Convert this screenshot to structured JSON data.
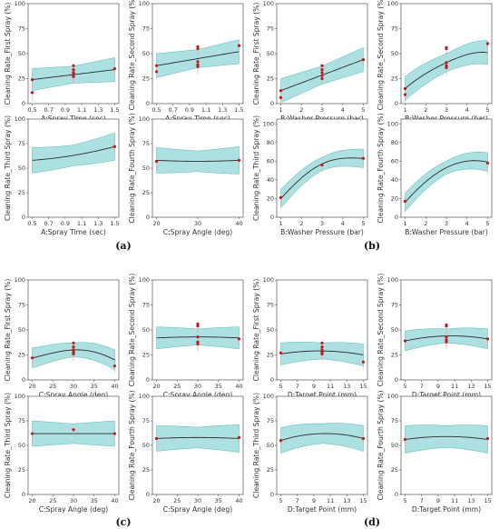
{
  "panel_labels": {
    "a": "(a)",
    "b": "(b)",
    "c": "(c)",
    "d": "(d)"
  },
  "colors": {
    "band": "#9fdcdc",
    "band_edge": "#4fb6b6",
    "curve": "#2b2b2b",
    "point": "#c0191a",
    "ci_line": "#e8a5a5"
  },
  "chart_data": [
    {
      "type": "line",
      "x_ticks": [
        "0.5",
        "0.7",
        "0.9",
        "1.1",
        "1.3",
        "1.5"
      ],
      "x_vals": [
        0.5,
        0.7,
        0.9,
        1.1,
        1.3,
        1.5
      ],
      "xlim": [
        0.45,
        1.55
      ],
      "y_ticks": [
        "0",
        "25",
        "50",
        "75",
        "100"
      ],
      "ylim": [
        0,
        100
      ],
      "xlabel": "A:Spray Time (sec)",
      "ylabel": "Cleaning Rate_First Spray (%)",
      "fit_x": [
        0.5,
        1.5
      ],
      "fit_y": [
        24,
        34
      ],
      "band": [
        8,
        9
      ],
      "points": [
        [
          0.5,
          24
        ],
        [
          0.5,
          11
        ],
        [
          1.0,
          38
        ],
        [
          1.0,
          34
        ],
        [
          1.0,
          31
        ],
        [
          1.0,
          29
        ],
        [
          1.0,
          27
        ],
        [
          1.5,
          35
        ]
      ]
    },
    {
      "type": "line",
      "x_ticks": [
        "0.5",
        "0.7",
        "0.9",
        "1.1",
        "1.3",
        "1.5"
      ],
      "x_vals": [
        0.5,
        0.7,
        0.9,
        1.1,
        1.3,
        1.5
      ],
      "xlim": [
        0.45,
        1.55
      ],
      "y_ticks": [
        "0",
        "25",
        "50",
        "75",
        "100"
      ],
      "ylim": [
        0,
        100
      ],
      "xlabel": "A:Spray Time (sec)",
      "ylabel": "Cleaning Rate_Second Spray (%)",
      "fit_x": [
        0.5,
        1.5
      ],
      "fit_y": [
        38,
        52
      ],
      "band": [
        9,
        9
      ],
      "points": [
        [
          0.5,
          38
        ],
        [
          0.5,
          32
        ],
        [
          1.0,
          57
        ],
        [
          1.0,
          55
        ],
        [
          1.0,
          42
        ],
        [
          1.0,
          39
        ],
        [
          1.0,
          37
        ],
        [
          1.5,
          58
        ]
      ]
    },
    {
      "type": "line",
      "x_ticks": [
        "1",
        "2",
        "3",
        "4",
        "5"
      ],
      "x_vals": [
        1,
        2,
        3,
        4,
        5
      ],
      "xlim": [
        0.8,
        5.2
      ],
      "y_ticks": [
        "0",
        "25",
        "50",
        "75",
        "100"
      ],
      "ylim": [
        0,
        100
      ],
      "xlabel": "B:Washer Pressure (bar)",
      "ylabel": "Cleaning Rate_First Spray (%)",
      "fit_x": [
        1,
        5
      ],
      "fit_y": [
        13,
        44
      ],
      "band": [
        9,
        9
      ],
      "points": [
        [
          1,
          13
        ],
        [
          1,
          6
        ],
        [
          3,
          38
        ],
        [
          3,
          34
        ],
        [
          3,
          31
        ],
        [
          3,
          28
        ],
        [
          3,
          25
        ],
        [
          5,
          44
        ]
      ]
    },
    {
      "type": "line",
      "x_ticks": [
        "1",
        "2",
        "3",
        "4",
        "5"
      ],
      "x_vals": [
        1,
        2,
        3,
        4,
        5
      ],
      "xlim": [
        0.8,
        5.2
      ],
      "y_ticks": [
        "0",
        "25",
        "50",
        "75",
        "100"
      ],
      "ylim": [
        0,
        100
      ],
      "xlabel": "B:Washer Pressure (bar)",
      "ylabel": "Cleaning Rate_Second Spray (%)",
      "fit_x": [
        1,
        2,
        3,
        4,
        5
      ],
      "fit_y": [
        15,
        30,
        41,
        49,
        51
      ],
      "band": [
        9,
        9
      ],
      "points": [
        [
          1,
          15
        ],
        [
          1,
          9
        ],
        [
          3,
          56
        ],
        [
          3,
          55
        ],
        [
          3,
          41
        ],
        [
          3,
          38
        ],
        [
          3,
          36
        ],
        [
          5,
          60
        ]
      ]
    },
    {
      "type": "line",
      "x_ticks": [
        "0.5",
        "0.7",
        "0.9",
        "1.1",
        "1.3",
        "1.5"
      ],
      "x_vals": [
        0.5,
        0.7,
        0.9,
        1.1,
        1.3,
        1.5
      ],
      "xlim": [
        0.45,
        1.55
      ],
      "y_ticks": [
        "0",
        "25",
        "50",
        "75",
        "100"
      ],
      "ylim": [
        0,
        100
      ],
      "xlabel": "A:Spray Time (sec)",
      "ylabel": "Cleaning Rate_Third Spray (%)",
      "fit_x": [
        0.5,
        1.0,
        1.5
      ],
      "fit_y": [
        58,
        63,
        72
      ],
      "band": [
        10,
        11
      ],
      "points": [
        [
          1.5,
          72
        ]
      ]
    },
    {
      "type": "line",
      "x_ticks": [
        "20",
        "30",
        "40"
      ],
      "x_vals": [
        20,
        30,
        40
      ],
      "xlim": [
        19,
        41
      ],
      "y_ticks": [
        "0",
        "25",
        "50",
        "75",
        "100"
      ],
      "ylim": [
        0,
        100
      ],
      "xlabel": "C:Spray Angle (deg)",
      "ylabel": "Cleaning Rate_Fourth Spray (%)",
      "fit_x": [
        20,
        30,
        40
      ],
      "fit_y": [
        58,
        57,
        58
      ],
      "band": [
        10,
        11
      ],
      "points": [
        [
          20,
          57
        ],
        [
          40,
          58
        ]
      ]
    },
    {
      "type": "line",
      "x_ticks": [
        "1",
        "2",
        "3",
        "4",
        "5"
      ],
      "x_vals": [
        1,
        2,
        3,
        4,
        5
      ],
      "xlim": [
        0.8,
        5.2
      ],
      "y_ticks": [
        "0",
        "20",
        "40",
        "60",
        "80",
        "100"
      ],
      "ylim": [
        0,
        105
      ],
      "xlabel": "B:Washer Pressure (bar)",
      "ylabel": "Cleaning Rate_Third Spray (%)",
      "fit_x": [
        1,
        2,
        3,
        4,
        5
      ],
      "fit_y": [
        20,
        42,
        57,
        63,
        63
      ],
      "band": [
        7,
        7
      ],
      "points": [
        [
          1,
          21
        ],
        [
          3,
          56
        ],
        [
          5,
          63
        ]
      ]
    },
    {
      "type": "line",
      "x_ticks": [
        "1",
        "2",
        "3",
        "4",
        "5"
      ],
      "x_vals": [
        1,
        2,
        3,
        4,
        5
      ],
      "xlim": [
        0.8,
        5.2
      ],
      "y_ticks": [
        "0",
        "20",
        "40",
        "60",
        "80",
        "100"
      ],
      "ylim": [
        0,
        105
      ],
      "xlabel": "B:Washer Pressure (bar)",
      "ylabel": "Cleaning Rate_Fourth Spray (%)",
      "fit_x": [
        1,
        2,
        3,
        4,
        5
      ],
      "fit_y": [
        16,
        38,
        53,
        60,
        59
      ],
      "band": [
        7,
        7
      ],
      "points": [
        [
          1,
          17
        ],
        [
          5,
          58
        ]
      ]
    },
    {
      "type": "line",
      "x_ticks": [
        "20",
        "25",
        "30",
        "35",
        "40"
      ],
      "x_vals": [
        20,
        25,
        30,
        35,
        40
      ],
      "xlim": [
        19,
        41
      ],
      "y_ticks": [
        "0",
        "25",
        "50",
        "75",
        "100"
      ],
      "ylim": [
        0,
        100
      ],
      "xlabel": "C:Spray Angle (deg)",
      "ylabel": "Cleaning Rate_First Spray (%)",
      "fit_x": [
        20,
        25,
        30,
        35,
        40
      ],
      "fit_y": [
        22,
        27,
        30,
        28,
        20
      ],
      "band": [
        7,
        7
      ],
      "points": [
        [
          20,
          22
        ],
        [
          30,
          37
        ],
        [
          30,
          33
        ],
        [
          30,
          30
        ],
        [
          30,
          28
        ],
        [
          30,
          26
        ],
        [
          40,
          14
        ]
      ]
    },
    {
      "type": "line",
      "x_ticks": [
        "20",
        "25",
        "30",
        "35",
        "40"
      ],
      "x_vals": [
        20,
        25,
        30,
        35,
        40
      ],
      "xlim": [
        19,
        41
      ],
      "y_ticks": [
        "0",
        "25",
        "50",
        "75",
        "100"
      ],
      "ylim": [
        0,
        100
      ],
      "xlabel": "C:Spray Angle (deg)",
      "ylabel": "Cleaning Rate_Second Spray (%)",
      "fit_x": [
        20,
        30,
        40
      ],
      "fit_y": [
        42,
        43,
        42
      ],
      "band": [
        8,
        8
      ],
      "points": [
        [
          30,
          56
        ],
        [
          30,
          54
        ],
        [
          30,
          43
        ],
        [
          30,
          38
        ],
        [
          30,
          36
        ],
        [
          40,
          41
        ]
      ]
    },
    {
      "type": "line",
      "x_ticks": [
        "5",
        "7",
        "9",
        "11",
        "13",
        "15"
      ],
      "x_vals": [
        5,
        7,
        9,
        11,
        13,
        15
      ],
      "xlim": [
        4.5,
        15.5
      ],
      "y_ticks": [
        "0",
        "25",
        "50",
        "75",
        "100"
      ],
      "ylim": [
        0,
        100
      ],
      "xlabel": "D:Target Point (mm)",
      "ylabel": "Cleaning Rate_First Spray (%)",
      "fit_x": [
        5,
        10,
        15
      ],
      "fit_y": [
        26,
        29,
        25
      ],
      "band": [
        8,
        8
      ],
      "points": [
        [
          5,
          27
        ],
        [
          10,
          37
        ],
        [
          10,
          33
        ],
        [
          10,
          30
        ],
        [
          10,
          28
        ],
        [
          10,
          26
        ],
        [
          15,
          18
        ]
      ]
    },
    {
      "type": "line",
      "x_ticks": [
        "5",
        "7",
        "9",
        "11",
        "13",
        "15"
      ],
      "x_vals": [
        5,
        7,
        9,
        11,
        13,
        15
      ],
      "xlim": [
        4.5,
        15.5
      ],
      "y_ticks": [
        "0",
        "25",
        "50",
        "75",
        "100"
      ],
      "ylim": [
        0,
        100
      ],
      "xlabel": "D:Target Point (mm)",
      "ylabel": "Cleaning Rate_Second Spray (%)",
      "fit_x": [
        5,
        10,
        15
      ],
      "fit_y": [
        39,
        44,
        41
      ],
      "band": [
        7,
        7
      ],
      "points": [
        [
          5,
          39
        ],
        [
          10,
          55
        ],
        [
          10,
          54
        ],
        [
          10,
          43
        ],
        [
          10,
          40
        ],
        [
          10,
          38
        ],
        [
          15,
          41
        ]
      ]
    },
    {
      "type": "line",
      "x_ticks": [
        "20",
        "25",
        "30",
        "35",
        "40"
      ],
      "x_vals": [
        20,
        25,
        30,
        35,
        40
      ],
      "xlim": [
        19,
        41
      ],
      "y_ticks": [
        "0",
        "25",
        "50",
        "75",
        "100"
      ],
      "ylim": [
        0,
        100
      ],
      "xlabel": "C:Spray Angle (deg)",
      "ylabel": "Cleaning Rate_Third Spray (%)",
      "fit_x": [
        20,
        30,
        40
      ],
      "fit_y": [
        62,
        62,
        62
      ],
      "band": [
        10,
        10
      ],
      "points": [
        [
          20,
          62
        ],
        [
          30,
          66
        ],
        [
          40,
          62
        ]
      ]
    },
    {
      "type": "line",
      "x_ticks": [
        "20",
        "25",
        "30",
        "35",
        "40"
      ],
      "x_vals": [
        20,
        25,
        30,
        35,
        40
      ],
      "xlim": [
        19,
        41
      ],
      "y_ticks": [
        "0",
        "25",
        "50",
        "75",
        "100"
      ],
      "ylim": [
        0,
        100
      ],
      "xlabel": "C:Spray Angle (deg)",
      "ylabel": "Cleaning Rate_Fourth Spray (%)",
      "fit_x": [
        20,
        30,
        40
      ],
      "fit_y": [
        57,
        58,
        57
      ],
      "band": [
        10,
        11
      ],
      "points": [
        [
          20,
          57
        ],
        [
          40,
          58
        ]
      ]
    },
    {
      "type": "line",
      "x_ticks": [
        "5",
        "7",
        "9",
        "11",
        "13",
        "15"
      ],
      "x_vals": [
        5,
        7,
        9,
        11,
        13,
        15
      ],
      "xlim": [
        4.5,
        15.5
      ],
      "y_ticks": [
        "0",
        "25",
        "50",
        "75",
        "100"
      ],
      "ylim": [
        0,
        100
      ],
      "xlabel": "D:Target Point (mm)",
      "ylabel": "Cleaning Rate_Third Spray (%)",
      "fit_x": [
        5,
        10,
        15
      ],
      "fit_y": [
        55,
        62,
        57
      ],
      "band": [
        10,
        10
      ],
      "points": [
        [
          5,
          55
        ],
        [
          15,
          57
        ]
      ]
    },
    {
      "type": "line",
      "x_ticks": [
        "5",
        "7",
        "9",
        "11",
        "13",
        "15"
      ],
      "x_vals": [
        5,
        7,
        9,
        11,
        13,
        15
      ],
      "xlim": [
        4.5,
        15.5
      ],
      "y_ticks": [
        "0",
        "25",
        "50",
        "75",
        "100"
      ],
      "ylim": [
        0,
        100
      ],
      "xlabel": "D:Target Point (mm)",
      "ylabel": "Cleaning Rate_Fourth Spray (%)",
      "fit_x": [
        5,
        10,
        15
      ],
      "fit_y": [
        56,
        59,
        56
      ],
      "band": [
        11,
        11
      ],
      "points": [
        [
          5,
          56
        ],
        [
          15,
          57
        ]
      ]
    }
  ]
}
